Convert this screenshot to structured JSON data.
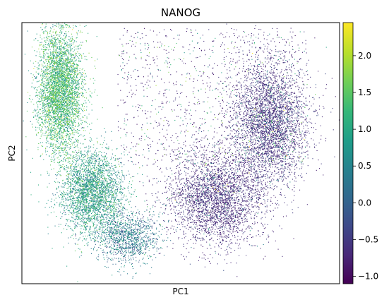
{
  "chart_data": {
    "type": "scatter",
    "title": "NANOG",
    "xlabel": "PC1",
    "ylabel": "PC2",
    "x_ticks_visible": false,
    "y_ticks_visible": false,
    "grid": false,
    "legend": "none",
    "colorbar": {
      "colormap": "viridis",
      "range": [
        -1.1,
        2.45
      ],
      "ticks": [
        -1.0,
        -0.5,
        0.0,
        0.5,
        1.0,
        1.5,
        2.0
      ],
      "tick_labels": [
        "−1.0",
        "−0.5",
        "0.0",
        "0.5",
        "1.0",
        "1.5",
        "2.0"
      ],
      "placement": "right"
    },
    "point_color_scale": [
      "#440154",
      "#482878",
      "#3e4989",
      "#31688e",
      "#26828e",
      "#1f9e89",
      "#35b779",
      "#6ece58",
      "#b5de2b",
      "#fde725"
    ],
    "clusters": [
      {
        "name": "",
        "center_pc1": 0.12,
        "center_pc2": 0.74,
        "spread_pc1": 0.035,
        "spread_pc2": 0.12,
        "typical_value": 1.2,
        "approx_points": 4200
      },
      {
        "name": "",
        "center_pc1": 0.22,
        "center_pc2": 0.35,
        "spread_pc1": 0.05,
        "spread_pc2": 0.08,
        "typical_value": 0.8,
        "approx_points": 3000
      },
      {
        "name": "",
        "center_pc1": 0.33,
        "center_pc2": 0.18,
        "spread_pc1": 0.05,
        "spread_pc2": 0.05,
        "typical_value": 0.3,
        "approx_points": 1200
      },
      {
        "name": "",
        "center_pc1": 0.61,
        "center_pc2": 0.33,
        "spread_pc1": 0.08,
        "spread_pc2": 0.09,
        "typical_value": -0.85,
        "approx_points": 3200
      },
      {
        "name": "",
        "center_pc1": 0.78,
        "center_pc2": 0.62,
        "spread_pc1": 0.06,
        "spread_pc2": 0.12,
        "typical_value": -0.8,
        "approx_points": 3500
      }
    ],
    "scatter_halo": {
      "approx_points": 1200,
      "pc1_range": [
        0.3,
        0.9
      ],
      "pc2_range": [
        0.45,
        0.98
      ]
    }
  }
}
